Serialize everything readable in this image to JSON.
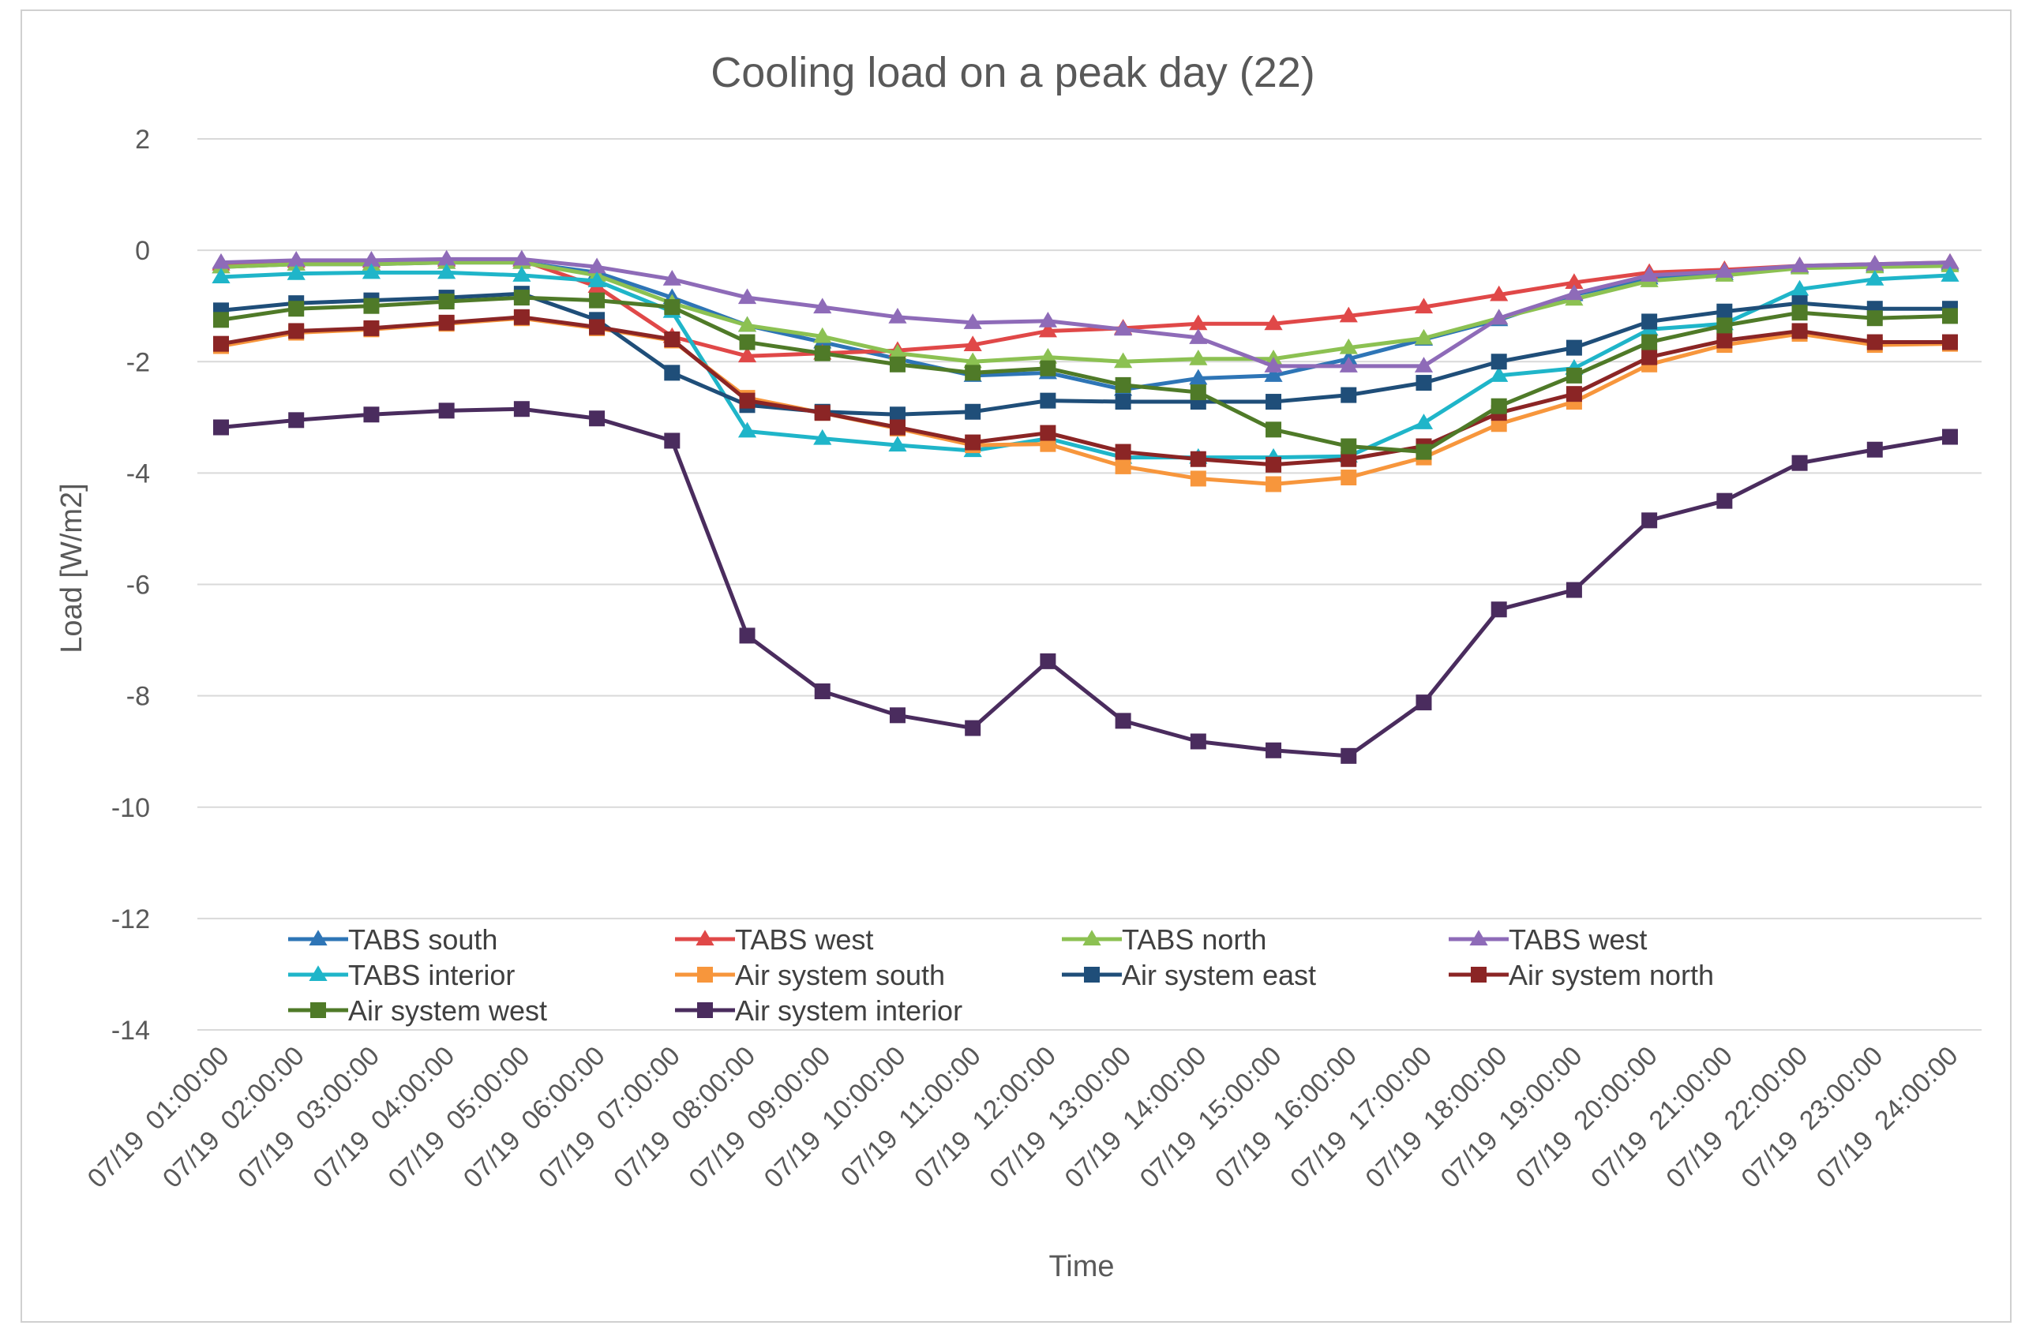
{
  "chart_data": {
    "type": "line",
    "title": "Cooling load on a peak day (22)",
    "xlabel": "Time",
    "ylabel": "Load [W/m2]",
    "ylim": [
      -14,
      2
    ],
    "yticks": [
      2,
      0,
      -2,
      -4,
      -6,
      -8,
      -10,
      -12,
      -14
    ],
    "grid": true,
    "legend_position": "bottom-inside",
    "categories": [
      "07/19  01:00:00",
      "07/19  02:00:00",
      "07/19  03:00:00",
      "07/19  04:00:00",
      "07/19  05:00:00",
      "07/19  06:00:00",
      "07/19  07:00:00",
      "07/19  08:00:00",
      "07/19  09:00:00",
      "07/19  10:00:00",
      "07/19  11:00:00",
      "07/19  12:00:00",
      "07/19  13:00:00",
      "07/19  14:00:00",
      "07/19  15:00:00",
      "07/19  16:00:00",
      "07/19  17:00:00",
      "07/19  18:00:00",
      "07/19  19:00:00",
      "07/19  20:00:00",
      "07/19  21:00:00",
      "07/19  22:00:00",
      "07/19  23:00:00",
      "07/19  24:00:00"
    ],
    "series": [
      {
        "name": "TABS south",
        "color": "#2E75B6",
        "marker": "triangle",
        "values": [
          -0.3,
          -0.25,
          -0.25,
          -0.22,
          -0.22,
          -0.4,
          -0.85,
          -1.35,
          -1.65,
          -1.95,
          -2.25,
          -2.2,
          -2.5,
          -2.3,
          -2.25,
          -1.95,
          -1.6,
          -1.25,
          -0.8,
          -0.5,
          -0.42,
          -0.3,
          -0.28,
          -0.25
        ]
      },
      {
        "name": "TABS west",
        "color": "#E04848",
        "marker": "triangle",
        "values": [
          -0.25,
          -0.2,
          -0.2,
          -0.18,
          -0.18,
          -0.65,
          -1.55,
          -1.9,
          -1.85,
          -1.8,
          -1.7,
          -1.45,
          -1.4,
          -1.32,
          -1.32,
          -1.18,
          -1.02,
          -0.8,
          -0.58,
          -0.4,
          -0.35,
          -0.28,
          -0.25,
          -0.22
        ]
      },
      {
        "name": "TABS north",
        "color": "#8CC152",
        "marker": "triangle",
        "values": [
          -0.3,
          -0.25,
          -0.25,
          -0.22,
          -0.22,
          -0.45,
          -0.95,
          -1.35,
          -1.55,
          -1.85,
          -2.0,
          -1.92,
          -2.0,
          -1.95,
          -1.95,
          -1.75,
          -1.58,
          -1.22,
          -0.88,
          -0.55,
          -0.45,
          -0.32,
          -0.3,
          -0.28
        ]
      },
      {
        "name": "TABS west",
        "color": "#8E6BB8",
        "marker": "triangle",
        "values": [
          -0.22,
          -0.18,
          -0.18,
          -0.16,
          -0.16,
          -0.3,
          -0.52,
          -0.85,
          -1.02,
          -1.2,
          -1.3,
          -1.27,
          -1.42,
          -1.57,
          -2.08,
          -2.08,
          -2.08,
          -1.22,
          -0.78,
          -0.45,
          -0.38,
          -0.28,
          -0.25,
          -0.22
        ]
      },
      {
        "name": "TABS interior",
        "color": "#1FB5C9",
        "marker": "triangle",
        "values": [
          -0.48,
          -0.42,
          -0.4,
          -0.4,
          -0.45,
          -0.55,
          -1.1,
          -3.25,
          -3.38,
          -3.5,
          -3.6,
          -3.38,
          -3.72,
          -3.72,
          -3.72,
          -3.7,
          -3.1,
          -2.25,
          -2.12,
          -1.42,
          -1.32,
          -0.7,
          -0.52,
          -0.45
        ]
      },
      {
        "name": "Air system south",
        "color": "#F7963C",
        "marker": "square",
        "values": [
          -1.72,
          -1.48,
          -1.42,
          -1.32,
          -1.22,
          -1.4,
          -1.62,
          -2.65,
          -2.92,
          -3.2,
          -3.5,
          -3.48,
          -3.88,
          -4.1,
          -4.2,
          -4.08,
          -3.72,
          -3.12,
          -2.72,
          -2.05,
          -1.7,
          -1.5,
          -1.7,
          -1.68
        ]
      },
      {
        "name": "Air system east",
        "color": "#1F4E79",
        "marker": "square",
        "values": [
          -1.08,
          -0.95,
          -0.9,
          -0.85,
          -0.78,
          -1.25,
          -2.2,
          -2.78,
          -2.9,
          -2.95,
          -2.9,
          -2.7,
          -2.72,
          -2.72,
          -2.72,
          -2.6,
          -2.38,
          -2.0,
          -1.75,
          -1.28,
          -1.1,
          -0.95,
          -1.05,
          -1.05
        ]
      },
      {
        "name": "Air system north",
        "color": "#8B2525",
        "marker": "square",
        "values": [
          -1.68,
          -1.45,
          -1.4,
          -1.3,
          -1.2,
          -1.38,
          -1.6,
          -2.7,
          -2.92,
          -3.18,
          -3.45,
          -3.28,
          -3.62,
          -3.75,
          -3.85,
          -3.75,
          -3.52,
          -2.92,
          -2.58,
          -1.92,
          -1.62,
          -1.45,
          -1.65,
          -1.65
        ]
      },
      {
        "name": "Air system west",
        "color": "#4F7A28",
        "marker": "square",
        "values": [
          -1.25,
          -1.05,
          -1.0,
          -0.92,
          -0.85,
          -0.9,
          -1.02,
          -1.65,
          -1.85,
          -2.05,
          -2.2,
          -2.12,
          -2.42,
          -2.55,
          -3.22,
          -3.52,
          -3.62,
          -2.8,
          -2.25,
          -1.65,
          -1.35,
          -1.12,
          -1.22,
          -1.18
        ]
      },
      {
        "name": "Air system interior",
        "color": "#4A2C5E",
        "marker": "square",
        "values": [
          -3.18,
          -3.05,
          -2.95,
          -2.88,
          -2.85,
          -3.02,
          -3.42,
          -6.92,
          -7.92,
          -8.35,
          -8.58,
          -7.38,
          -8.45,
          -8.82,
          -8.98,
          -9.08,
          -8.12,
          -6.45,
          -6.1,
          -4.85,
          -4.5,
          -3.82,
          -3.58,
          -3.35
        ]
      }
    ]
  }
}
